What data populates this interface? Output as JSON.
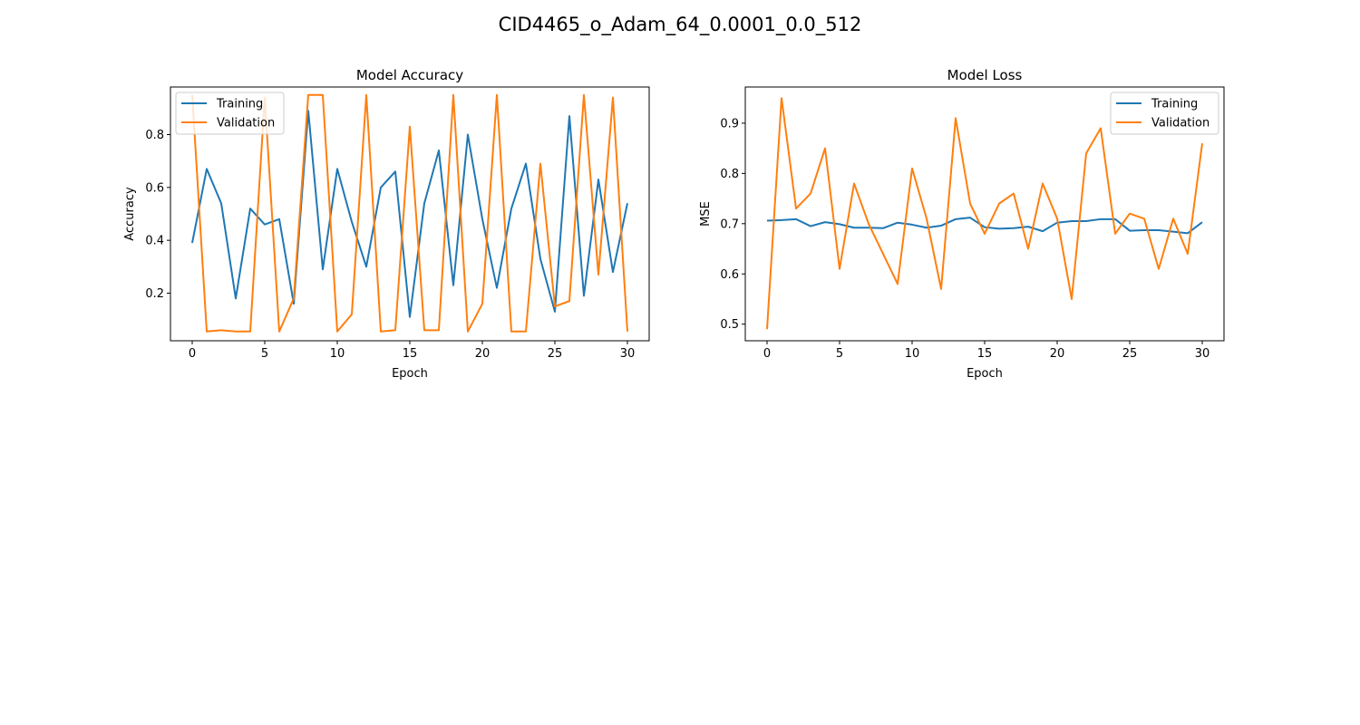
{
  "figure": {
    "suptitle": "CID4465_o_Adam_64_0.0001_0.0_512"
  },
  "colors": {
    "training": "#1f77b4",
    "validation": "#ff7f0e"
  },
  "chart_data": [
    {
      "type": "line",
      "title": "Model Accuracy",
      "xlabel": "Epoch",
      "ylabel": "Accuracy",
      "xlim": [
        -1.5,
        31.5
      ],
      "ylim": [
        0.02,
        0.98
      ],
      "xticks": [
        0,
        5,
        10,
        15,
        20,
        25,
        30
      ],
      "yticks": [
        0.2,
        0.4,
        0.6,
        0.8
      ],
      "ytick_labels": [
        "0.2",
        "0.4",
        "0.6",
        "0.8"
      ],
      "legend_position": "upper left",
      "grid": false,
      "x": [
        0,
        1,
        2,
        3,
        4,
        5,
        6,
        7,
        8,
        9,
        10,
        11,
        12,
        13,
        14,
        15,
        16,
        17,
        18,
        19,
        20,
        21,
        22,
        23,
        24,
        25,
        26,
        27,
        28,
        29,
        30
      ],
      "series": [
        {
          "name": "Training",
          "values": [
            0.39,
            0.67,
            0.54,
            0.18,
            0.52,
            0.46,
            0.48,
            0.16,
            0.89,
            0.29,
            0.67,
            0.47,
            0.3,
            0.6,
            0.66,
            0.11,
            0.54,
            0.74,
            0.23,
            0.8,
            0.48,
            0.22,
            0.52,
            0.69,
            0.33,
            0.13,
            0.87,
            0.19,
            0.63,
            0.28,
            0.54
          ]
        },
        {
          "name": "Validation",
          "values": [
            0.95,
            0.055,
            0.06,
            0.055,
            0.055,
            0.94,
            0.055,
            0.18,
            0.95,
            0.95,
            0.055,
            0.12,
            0.95,
            0.055,
            0.06,
            0.83,
            0.06,
            0.06,
            0.95,
            0.055,
            0.16,
            0.95,
            0.055,
            0.055,
            0.69,
            0.15,
            0.17,
            0.95,
            0.27,
            0.94,
            0.055
          ]
        }
      ]
    },
    {
      "type": "line",
      "title": "Model Loss",
      "xlabel": "Epoch",
      "ylabel": "MSE",
      "xlim": [
        -1.5,
        31.5
      ],
      "ylim": [
        0.467,
        0.972
      ],
      "xticks": [
        0,
        5,
        10,
        15,
        20,
        25,
        30
      ],
      "yticks": [
        0.5,
        0.6,
        0.7,
        0.8,
        0.9
      ],
      "ytick_labels": [
        "0.5",
        "0.6",
        "0.7",
        "0.8",
        "0.9"
      ],
      "legend_position": "upper right",
      "grid": false,
      "x": [
        0,
        1,
        2,
        3,
        4,
        5,
        6,
        7,
        8,
        9,
        10,
        11,
        12,
        13,
        14,
        15,
        16,
        17,
        18,
        19,
        20,
        21,
        22,
        23,
        24,
        25,
        26,
        27,
        28,
        29,
        30
      ],
      "series": [
        {
          "name": "Training",
          "values": [
            0.706,
            0.707,
            0.709,
            0.695,
            0.703,
            0.699,
            0.692,
            0.692,
            0.691,
            0.702,
            0.698,
            0.692,
            0.696,
            0.709,
            0.712,
            0.693,
            0.69,
            0.691,
            0.694,
            0.685,
            0.702,
            0.705,
            0.705,
            0.709,
            0.709,
            0.686,
            0.687,
            0.687,
            0.684,
            0.681,
            0.703
          ]
        },
        {
          "name": "Validation",
          "values": [
            0.49,
            0.95,
            0.73,
            0.76,
            0.85,
            0.61,
            0.78,
            0.7,
            0.64,
            0.58,
            0.81,
            0.71,
            0.57,
            0.91,
            0.74,
            0.68,
            0.74,
            0.76,
            0.65,
            0.78,
            0.71,
            0.55,
            0.84,
            0.89,
            0.68,
            0.72,
            0.71,
            0.61,
            0.71,
            0.64,
            0.86
          ]
        }
      ]
    }
  ]
}
